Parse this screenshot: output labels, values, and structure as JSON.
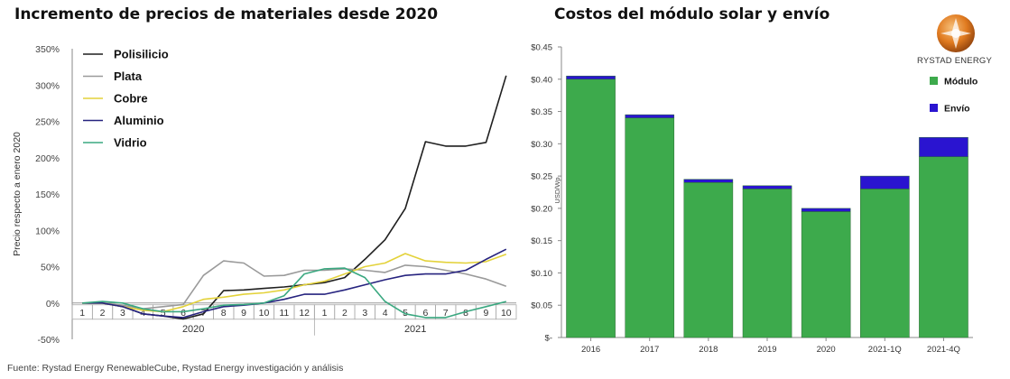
{
  "chart_data": [
    {
      "type": "line",
      "title": "Incremento de precios de materiales desde 2020",
      "ylabel": "Precio respecto a enero 2020",
      "xlabel": "",
      "ylim": [
        -50,
        350
      ],
      "y_ticks": [
        "350%",
        "300%",
        "250%",
        "200%",
        "150%",
        "100%",
        "50%",
        "0%",
        "-50%"
      ],
      "y_tick_values": [
        350,
        300,
        250,
        200,
        150,
        100,
        50,
        0,
        -50
      ],
      "x_labels": [
        "1",
        "2",
        "3",
        "4",
        "5",
        "6",
        "7",
        "8",
        "9",
        "10",
        "11",
        "12",
        "1",
        "2",
        "3",
        "4",
        "5",
        "6",
        "7",
        "8",
        "9",
        "10"
      ],
      "year_labels": [
        "2020",
        "2021"
      ],
      "grid": false,
      "legend_position": "top-left",
      "series": [
        {
          "name": "Polisilicio",
          "color": "#1f1f1f",
          "values": [
            0,
            0,
            -5,
            -15,
            -18,
            -22,
            -15,
            17,
            18,
            20,
            22,
            25,
            28,
            35,
            60,
            87,
            130,
            222,
            216,
            216,
            221,
            313
          ]
        },
        {
          "name": "Plata",
          "color": "#9a9a9a",
          "values": [
            0,
            0,
            -3,
            -8,
            -5,
            -2,
            38,
            58,
            55,
            37,
            38,
            45,
            45,
            47,
            45,
            42,
            52,
            50,
            45,
            40,
            33,
            23
          ]
        },
        {
          "name": "Cobre",
          "color": "#e3d23a",
          "values": [
            0,
            0,
            -5,
            -10,
            -12,
            -5,
            5,
            8,
            12,
            14,
            18,
            25,
            30,
            40,
            50,
            55,
            68,
            58,
            56,
            55,
            57,
            67
          ]
        },
        {
          "name": "Aluminio",
          "color": "#26237f",
          "values": [
            0,
            0,
            -5,
            -15,
            -18,
            -20,
            -12,
            -5,
            -3,
            0,
            5,
            12,
            12,
            18,
            25,
            32,
            38,
            40,
            40,
            45,
            60,
            74
          ]
        },
        {
          "name": "Vidrio",
          "color": "#3aa880",
          "values": [
            0,
            2,
            0,
            -8,
            -12,
            -12,
            -8,
            -3,
            -2,
            0,
            10,
            40,
            47,
            48,
            35,
            2,
            -15,
            -20,
            -20,
            -12,
            -5,
            2
          ]
        }
      ]
    },
    {
      "type": "bar",
      "stacked": true,
      "title": "Costos del módulo solar y envío",
      "ylabel": "USD/Wp",
      "xlabel": "",
      "ylim": [
        0,
        0.45
      ],
      "y_ticks": [
        "$0.45",
        "$0.40",
        "$0.35",
        "$0.30",
        "$0.25",
        "$0.20",
        "$0.15",
        "$0.10",
        "$0.05",
        "$-"
      ],
      "y_tick_values": [
        0.45,
        0.4,
        0.35,
        0.3,
        0.25,
        0.2,
        0.15,
        0.1,
        0.05,
        0
      ],
      "categories": [
        "2016",
        "2017",
        "2018",
        "2019",
        "2020",
        "2021-1Q",
        "2021-4Q"
      ],
      "legend_position": "top-right",
      "grid": false,
      "series": [
        {
          "name": "Módulo",
          "color": "#3daa4c",
          "values": [
            0.4,
            0.34,
            0.24,
            0.23,
            0.195,
            0.23,
            0.28
          ]
        },
        {
          "name": "Envío",
          "color": "#2a14d0",
          "values": [
            0.005,
            0.005,
            0.005,
            0.005,
            0.005,
            0.02,
            0.03
          ]
        }
      ]
    }
  ],
  "brand": {
    "name": "RYSTAD ENERGY",
    "logo_icon": "rystad-logo-icon"
  },
  "footer": {
    "source": "Fuente: Rystad Energy RenewableCube, Rystad Energy investigación y análisis"
  }
}
